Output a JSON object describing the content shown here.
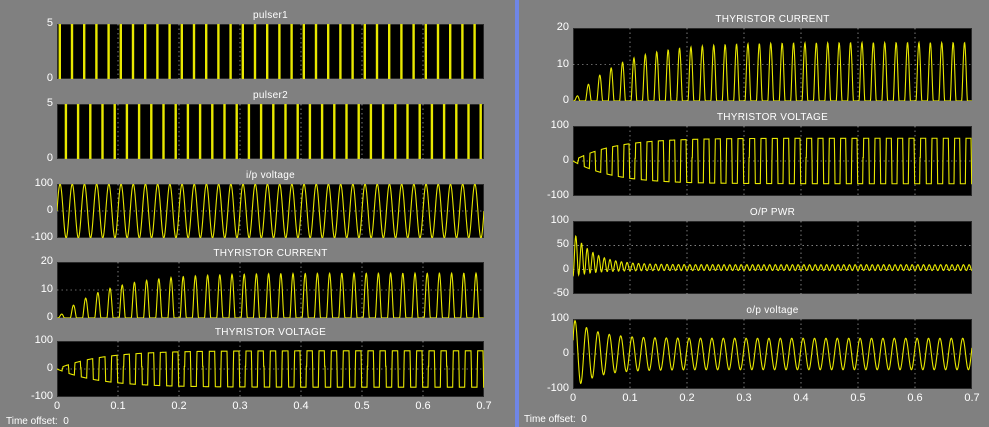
{
  "colors": {
    "panel": "#808080",
    "axes_bg": "#000000",
    "trace": "#e8e800",
    "grid": "#ffffff",
    "divider": "#6f86e6"
  },
  "left": {
    "time_offset_label": "Time offset:",
    "time_offset_value": "0",
    "xticks": [
      "0",
      "0.1",
      "0.2",
      "0.3",
      "0.4",
      "0.5",
      "0.6",
      "0.7"
    ]
  },
  "right": {
    "time_offset_label": "Time offset:",
    "time_offset_value": "0",
    "xticks": [
      "0",
      "0.1",
      "0.2",
      "0.3",
      "0.4",
      "0.5",
      "0.6",
      "0.7"
    ]
  },
  "chart_data": [
    {
      "id": "l-pulser1",
      "type": "line",
      "title": "pulser1",
      "kind": "pulse",
      "amplitude": 5,
      "ylim": [
        0,
        5
      ],
      "xlim": [
        0,
        0.7
      ],
      "yticks": [
        "5",
        "0"
      ],
      "grid": true
    },
    {
      "id": "l-pulser2",
      "type": "line",
      "title": "pulser2",
      "kind": "pulse",
      "amplitude": 5,
      "ylim": [
        0,
        5
      ],
      "xlim": [
        0,
        0.7
      ],
      "yticks": [
        "5",
        "0"
      ],
      "grid": true
    },
    {
      "id": "l-ipvoltage",
      "type": "line",
      "title": "i/p voltage",
      "kind": "sine",
      "amplitude": 100,
      "ylim": [
        -100,
        100
      ],
      "xlim": [
        0,
        0.7
      ],
      "yticks": [
        "100",
        "0",
        "-100"
      ],
      "grid": true
    },
    {
      "id": "l-thycurrent",
      "type": "line",
      "title": "THYRISTOR CURRENT",
      "kind": "current",
      "amplitude": 16,
      "ylim": [
        0,
        20
      ],
      "xlim": [
        0,
        0.7
      ],
      "yticks": [
        "20",
        "10",
        "0"
      ],
      "grid": true
    },
    {
      "id": "l-thyvoltage",
      "type": "line",
      "title": "THYRISTOR VOLTAGE",
      "kind": "thyvoltage",
      "amplitude": 65,
      "ylim": [
        -100,
        100
      ],
      "xlim": [
        0,
        0.7
      ],
      "yticks": [
        "100",
        "0",
        "-100"
      ],
      "grid": true
    },
    {
      "id": "r-thycurrent",
      "type": "line",
      "title": "THYRISTOR CURRENT",
      "kind": "current",
      "amplitude": 16,
      "ylim": [
        0,
        20
      ],
      "xlim": [
        0,
        0.7
      ],
      "yticks": [
        "20",
        "10",
        "0"
      ],
      "grid": true
    },
    {
      "id": "r-thyvoltage",
      "type": "line",
      "title": "THYRISTOR VOLTAGE",
      "kind": "thyvoltage",
      "amplitude": 65,
      "ylim": [
        -100,
        100
      ],
      "xlim": [
        0,
        0.7
      ],
      "yticks": [
        "100",
        "0",
        "-100"
      ],
      "grid": true
    },
    {
      "id": "r-oppwr",
      "type": "line",
      "title": "O/P PWR",
      "kind": "power",
      "amplitude": 95,
      "ylim": [
        -50,
        100
      ],
      "xlim": [
        0,
        0.7
      ],
      "yticks": [
        "100",
        "50",
        "0",
        "-50"
      ],
      "grid": true
    },
    {
      "id": "r-opvoltage",
      "type": "line",
      "title": "o/p voltage",
      "kind": "opvoltage",
      "amplitude": 100,
      "ylim": [
        -100,
        100
      ],
      "xlim": [
        0,
        0.7
      ],
      "yticks": [
        "100",
        "0",
        "-100"
      ],
      "grid": true
    }
  ]
}
